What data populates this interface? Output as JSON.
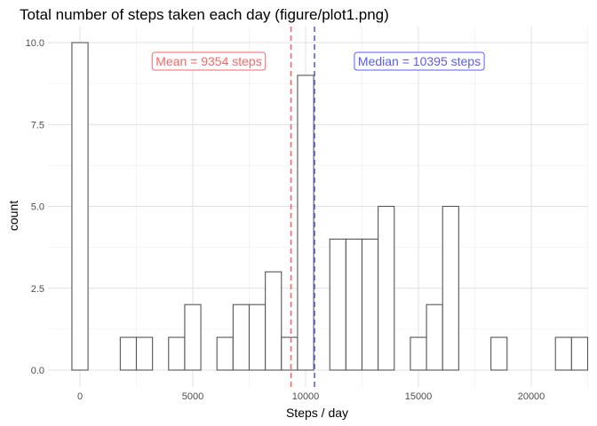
{
  "chart_data": {
    "type": "histogram",
    "title": "Total number of steps taken each day (figure/plot1.png)",
    "xlabel": "Steps / day",
    "ylabel": "count",
    "xlim": [
      -1100,
      22300
    ],
    "ylim": [
      -0.5,
      10.5
    ],
    "x_ticks": [
      0,
      5000,
      10000,
      15000,
      20000
    ],
    "x_tick_labels": [
      "0",
      "5000",
      "10000",
      "15000",
      "20000"
    ],
    "y_ticks": [
      0,
      2.5,
      5,
      7.5,
      10
    ],
    "y_tick_labels": [
      "0.0",
      "2.5",
      "5.0",
      "7.5",
      "10.0"
    ],
    "grid": true,
    "bin_width": 730,
    "bins": [
      {
        "center": 0,
        "count": 10
      },
      {
        "center": 730,
        "count": 0
      },
      {
        "center": 1460,
        "count": 0
      },
      {
        "center": 2190,
        "count": 1
      },
      {
        "center": 2920,
        "count": 1
      },
      {
        "center": 3650,
        "count": 0
      },
      {
        "center": 4380,
        "count": 1
      },
      {
        "center": 5110,
        "count": 2
      },
      {
        "center": 5840,
        "count": 0
      },
      {
        "center": 6570,
        "count": 1
      },
      {
        "center": 7300,
        "count": 2
      },
      {
        "center": 8030,
        "count": 2
      },
      {
        "center": 8760,
        "count": 3
      },
      {
        "center": 9490,
        "count": 1
      },
      {
        "center": 10220,
        "count": 9
      },
      {
        "center": 10950,
        "count": 0
      },
      {
        "center": 11680,
        "count": 4
      },
      {
        "center": 12410,
        "count": 4
      },
      {
        "center": 13140,
        "count": 4
      },
      {
        "center": 13870,
        "count": 5
      },
      {
        "center": 14600,
        "count": 0
      },
      {
        "center": 15330,
        "count": 1
      },
      {
        "center": 16060,
        "count": 2
      },
      {
        "center": 16790,
        "count": 5
      },
      {
        "center": 17520,
        "count": 0
      },
      {
        "center": 18250,
        "count": 0
      },
      {
        "center": 18980,
        "count": 1
      },
      {
        "center": 19710,
        "count": 0
      },
      {
        "center": 20440,
        "count": 0
      },
      {
        "center": 21170,
        "count": 0
      },
      {
        "center": 21900,
        "count": 1
      },
      {
        "center": 22630,
        "count": 1
      }
    ],
    "reference_lines": [
      {
        "label": "Mean = 9354 steps",
        "value": 9354,
        "color": "#f8666a",
        "style": "dashed"
      },
      {
        "label": "Median = 10395 steps",
        "value": 10395,
        "color": "#5b5bf0",
        "style": "dashed"
      }
    ],
    "bar_stroke": "#555555",
    "bar_fill": "#ffffff"
  }
}
